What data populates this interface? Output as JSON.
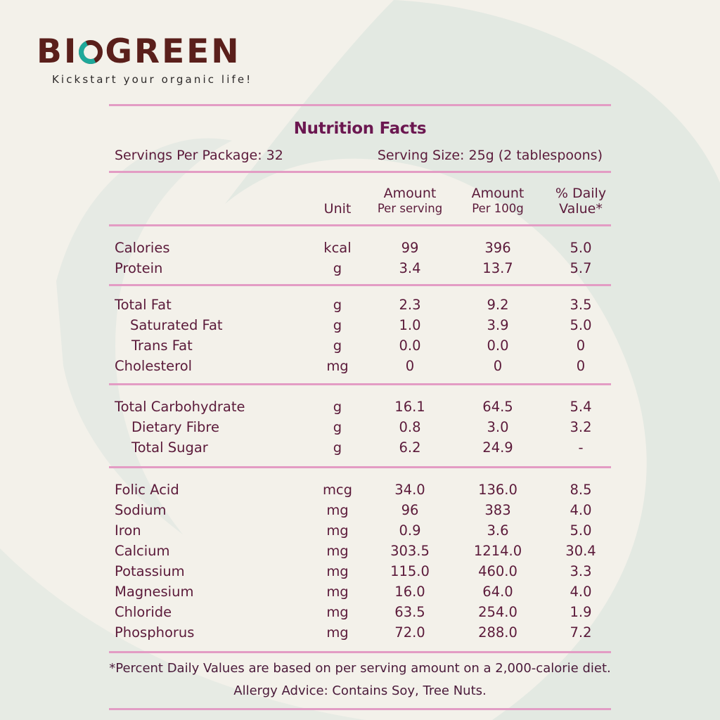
{
  "brand": {
    "name_prefix": "BI",
    "name_suffix": "GREEN",
    "tagline": "Kickstart your organic life!",
    "colors": {
      "brand": "#5a1f1b",
      "accent": "#1fa89a"
    },
    "icon": "ring-o-logo-icon"
  },
  "label": {
    "title": "Nutrition Facts",
    "servings_per_package": "Servings Per Package: 32",
    "serving_size": "Serving Size: 25g (2 tablespoons)",
    "headers": {
      "unit": "Unit",
      "per_serving_1": "Amount",
      "per_serving_2": "Per serving",
      "per_100g_1": "Amount",
      "per_100g_2": "Per 100g",
      "dv_1": "% Daily",
      "dv_2": "Value*"
    },
    "sections": [
      {
        "rows": [
          {
            "name": "Calories",
            "unit": "kcal",
            "per_serving": "99",
            "per_100g": "396",
            "dv": "5.0",
            "indent": 0
          },
          {
            "name": "Protein",
            "unit": "g",
            "per_serving": "3.4",
            "per_100g": "13.7",
            "dv": "5.7",
            "indent": 0
          }
        ]
      },
      {
        "rows": [
          {
            "name": "Total Fat",
            "unit": "g",
            "per_serving": "2.3",
            "per_100g": "9.2",
            "dv": "3.5",
            "indent": 0
          },
          {
            "name": "Saturated Fat",
            "unit": "g",
            "per_serving": "1.0",
            "per_100g": "3.9",
            "dv": "5.0",
            "indent": 1
          },
          {
            "name": "Trans Fat",
            "unit": "g",
            "per_serving": "0.0",
            "per_100g": "0.0",
            "dv": "0",
            "indent": 2
          },
          {
            "name": "Cholesterol",
            "unit": "mg",
            "per_serving": "0",
            "per_100g": "0",
            "dv": "0",
            "indent": 0
          }
        ]
      },
      {
        "rows": [
          {
            "name": "Total Carbohydrate",
            "unit": "g",
            "per_serving": "16.1",
            "per_100g": "64.5",
            "dv": "5.4",
            "indent": 0
          },
          {
            "name": "Dietary Fibre",
            "unit": "g",
            "per_serving": "0.8",
            "per_100g": "3.0",
            "dv": "3.2",
            "indent": 2
          },
          {
            "name": "Total Sugar",
            "unit": "g",
            "per_serving": "6.2",
            "per_100g": "24.9",
            "dv": "-",
            "indent": 2
          }
        ]
      },
      {
        "rows": [
          {
            "name": "Folic Acid",
            "unit": "mcg",
            "per_serving": "34.0",
            "per_100g": "136.0",
            "dv": "8.5",
            "indent": 0
          },
          {
            "name": "Sodium",
            "unit": "mg",
            "per_serving": "96",
            "per_100g": "383",
            "dv": "4.0",
            "indent": 0
          },
          {
            "name": "Iron",
            "unit": "mg",
            "per_serving": "0.9",
            "per_100g": "3.6",
            "dv": "5.0",
            "indent": 0
          },
          {
            "name": "Calcium",
            "unit": "mg",
            "per_serving": "303.5",
            "per_100g": "1214.0",
            "dv": "30.4",
            "indent": 0
          },
          {
            "name": "Potassium",
            "unit": "mg",
            "per_serving": "115.0",
            "per_100g": "460.0",
            "dv": "3.3",
            "indent": 0
          },
          {
            "name": "Magnesium",
            "unit": "mg",
            "per_serving": "16.0",
            "per_100g": "64.0",
            "dv": "4.0",
            "indent": 0
          },
          {
            "name": "Chloride",
            "unit": "mg",
            "per_serving": "63.5",
            "per_100g": "254.0",
            "dv": "1.9",
            "indent": 0
          },
          {
            "name": "Phosphorus",
            "unit": "mg",
            "per_serving": "72.0",
            "per_100g": "288.0",
            "dv": "7.2",
            "indent": 0
          }
        ]
      }
    ],
    "footnote": "*Percent Daily Values are based on per serving amount on a 2,000-calorie diet.",
    "allergy": "Allergy Advice: Contains Soy, Tree Nuts.",
    "colors": {
      "rule": "#e39cc4",
      "title": "#6b1750",
      "text": "#5b1a3a"
    }
  }
}
